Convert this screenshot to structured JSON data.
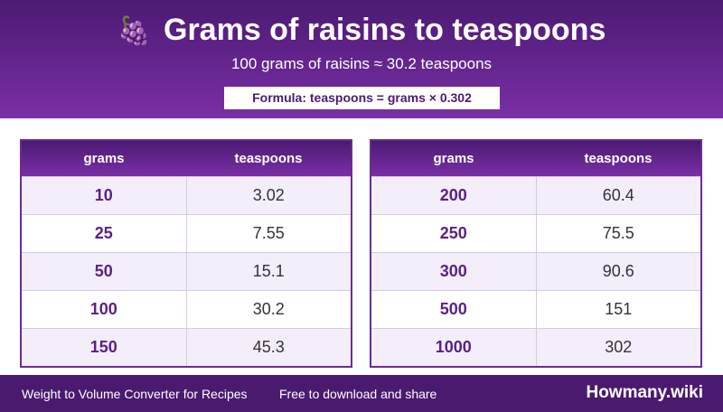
{
  "header": {
    "icon": "🍇",
    "title": "Grams of raisins to teaspoons",
    "subtitle": "100 grams of raisins ≈ 30.2 teaspoons",
    "formula": "Formula: teaspoons = grams × 0.302"
  },
  "tables": [
    {
      "columns": [
        "grams",
        "teaspoons"
      ],
      "rows": [
        [
          10,
          3.02
        ],
        [
          25,
          7.55
        ],
        [
          50,
          15.1
        ],
        [
          100,
          30.2
        ],
        [
          150,
          45.3
        ]
      ]
    },
    {
      "columns": [
        "grams",
        "teaspoons"
      ],
      "rows": [
        [
          200,
          60.4
        ],
        [
          250,
          75.5
        ],
        [
          300,
          90.6
        ],
        [
          500,
          151
        ],
        [
          1000,
          302
        ]
      ]
    }
  ],
  "footer": {
    "left": "Weight to Volume Converter for Recipes",
    "middle": "Free to download and share",
    "brand": "Howmany.wiki"
  }
}
